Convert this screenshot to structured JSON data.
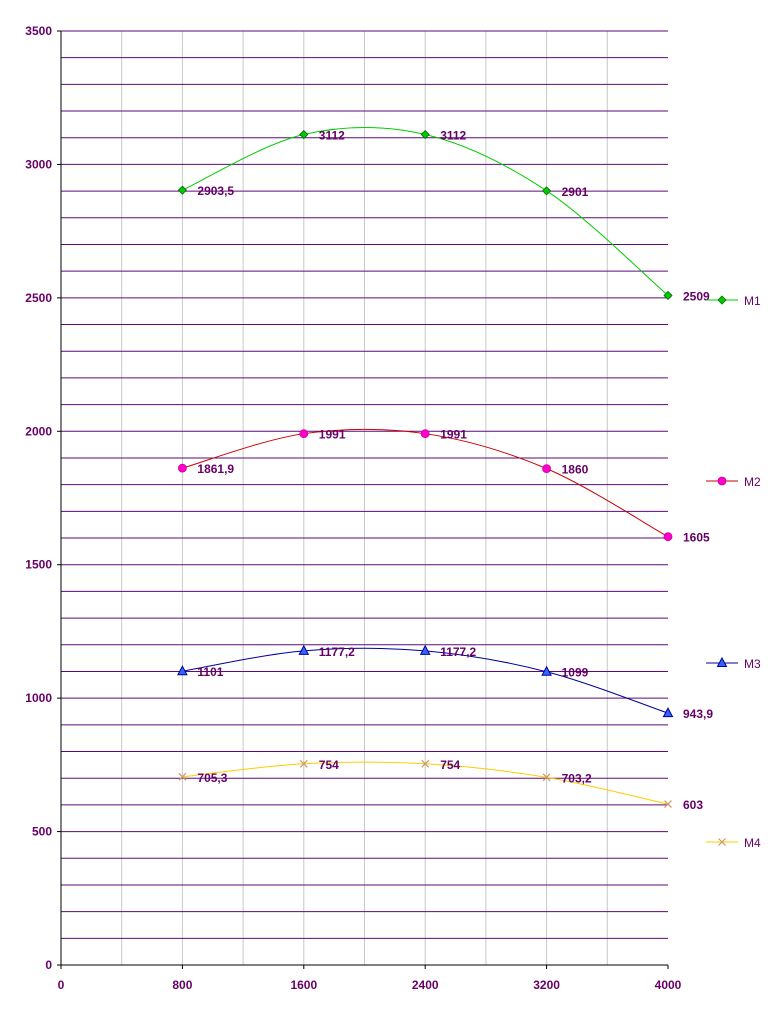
{
  "chart_data": {
    "type": "line",
    "x": [
      800,
      1600,
      2400,
      3200,
      4000
    ],
    "xlim": [
      0,
      4000
    ],
    "ylim": [
      0,
      3500
    ],
    "x_ticks": [
      0,
      800,
      1600,
      2400,
      3200,
      4000
    ],
    "x_tick_labels": [
      "0",
      "800",
      "1600",
      "2400",
      "3200",
      "4000"
    ],
    "y_ticks": [
      0,
      500,
      1000,
      1500,
      2000,
      2500,
      3000,
      3500
    ],
    "y_tick_labels": [
      "0",
      "500",
      "1000",
      "1500",
      "2000",
      "2500",
      "3000",
      "3500"
    ],
    "grid": true,
    "legend_position": "right",
    "series": [
      {
        "name": "M1",
        "values": [
          2903.5,
          3112,
          3112,
          2901,
          2509
        ],
        "labels": [
          "2903,5",
          "3112",
          "3112",
          "2901",
          "2509"
        ],
        "color": "#00cc00",
        "marker": "diamond"
      },
      {
        "name": "M2",
        "values": [
          1861.9,
          1991,
          1991,
          1860,
          1605
        ],
        "labels": [
          "1861,9",
          "1991",
          "1991",
          "1860",
          "1605"
        ],
        "color": "#cc0000",
        "marker_color": "#ff00cc",
        "marker": "circle"
      },
      {
        "name": "M3",
        "values": [
          1101,
          1177.2,
          1177.2,
          1099,
          943.9
        ],
        "labels": [
          "1101",
          "1177,2",
          "1177,2",
          "1099",
          "943,9"
        ],
        "color": "#000099",
        "marker_color": "#3366ff",
        "marker": "triangle"
      },
      {
        "name": "M4",
        "values": [
          705.3,
          754,
          754,
          703.2,
          603
        ],
        "labels": [
          "705,3",
          "754",
          "754",
          "703,2",
          "603"
        ],
        "color": "#ffcc00",
        "marker_color": "#cc9966",
        "marker": "x"
      }
    ]
  }
}
